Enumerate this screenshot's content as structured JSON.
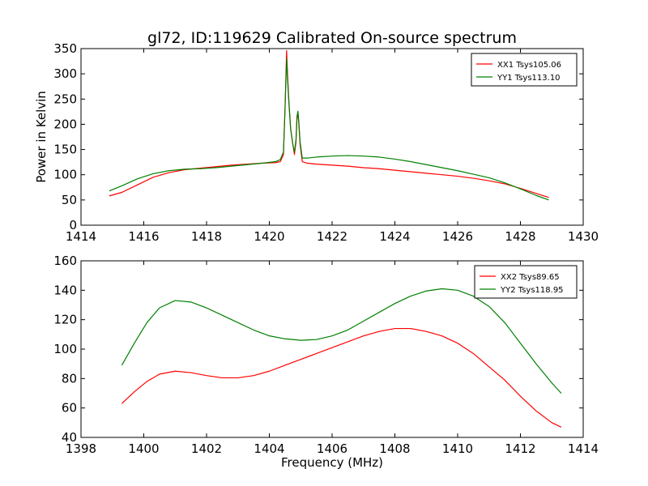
{
  "figure": {
    "title": "gl72, ID:119629 Calibrated On-source spectrum"
  },
  "chart_data": [
    {
      "type": "line",
      "title": "gl72, ID:119629 Calibrated On-source spectrum",
      "xlabel": "",
      "ylabel": "Power in Kelvin",
      "xlim": [
        1414,
        1430
      ],
      "ylim": [
        0,
        350
      ],
      "xticks": [
        1414,
        1416,
        1418,
        1420,
        1422,
        1424,
        1426,
        1428,
        1430
      ],
      "yticks": [
        0,
        50,
        100,
        150,
        200,
        250,
        300,
        350
      ],
      "grid": false,
      "legend_position": "top-right",
      "series": [
        {
          "name": "XX1 Tsys105.06",
          "color": "#ff0000",
          "x": [
            1414.9,
            1415.3,
            1415.8,
            1416.3,
            1416.8,
            1417.3,
            1417.8,
            1418.3,
            1418.8,
            1419.3,
            1419.8,
            1420.2,
            1420.35,
            1420.45,
            1420.5,
            1420.55,
            1420.58,
            1420.62,
            1420.68,
            1420.75,
            1420.8,
            1420.85,
            1420.88,
            1420.91,
            1420.94,
            1420.98,
            1421.05,
            1421.2,
            1421.5,
            1422.0,
            1422.5,
            1423.0,
            1423.5,
            1424.0,
            1424.5,
            1425.0,
            1425.5,
            1426.0,
            1426.5,
            1427.0,
            1427.5,
            1428.0,
            1428.5,
            1428.9
          ],
          "y": [
            58,
            65,
            80,
            95,
            104,
            110,
            113,
            116,
            119,
            121,
            123,
            124,
            126,
            140,
            230,
            346,
            300,
            250,
            190,
            160,
            140,
            165,
            210,
            224,
            200,
            160,
            126,
            123,
            121,
            119,
            117,
            114,
            112,
            109,
            106,
            103,
            100,
            97,
            93,
            88,
            82,
            73,
            63,
            55
          ]
        },
        {
          "name": "YY1 Tsys113.10",
          "color": "#008000",
          "x": [
            1414.9,
            1415.3,
            1415.8,
            1416.3,
            1416.8,
            1417.3,
            1417.8,
            1418.3,
            1418.8,
            1419.3,
            1419.8,
            1420.2,
            1420.35,
            1420.45,
            1420.5,
            1420.55,
            1420.58,
            1420.62,
            1420.68,
            1420.75,
            1420.8,
            1420.85,
            1420.88,
            1420.91,
            1420.94,
            1420.98,
            1421.05,
            1421.2,
            1421.5,
            1422.0,
            1422.5,
            1423.0,
            1423.5,
            1424.0,
            1424.5,
            1425.0,
            1425.5,
            1426.0,
            1426.5,
            1427.0,
            1427.5,
            1428.0,
            1428.5,
            1428.9
          ],
          "y": [
            68,
            78,
            92,
            102,
            108,
            111,
            112,
            114,
            117,
            120,
            123,
            126,
            130,
            145,
            230,
            330,
            290,
            245,
            190,
            160,
            145,
            170,
            215,
            226,
            205,
            165,
            133,
            133,
            135,
            137,
            138,
            137,
            135,
            131,
            126,
            120,
            114,
            108,
            101,
            94,
            84,
            72,
            59,
            50
          ]
        }
      ]
    },
    {
      "type": "line",
      "title": "",
      "xlabel": "Frequency (MHz)",
      "ylabel": "",
      "xlim": [
        1398,
        1414
      ],
      "ylim": [
        40,
        160
      ],
      "xticks": [
        1398,
        1400,
        1402,
        1404,
        1406,
        1408,
        1410,
        1412,
        1414
      ],
      "yticks": [
        40,
        60,
        80,
        100,
        120,
        140,
        160
      ],
      "grid": false,
      "legend_position": "top-right",
      "series": [
        {
          "name": "XX2 Tsys89.65",
          "color": "#ff0000",
          "x": [
            1399.3,
            1399.7,
            1400.1,
            1400.5,
            1401.0,
            1401.5,
            1402.0,
            1402.5,
            1403.0,
            1403.5,
            1404.0,
            1404.5,
            1405.0,
            1405.5,
            1406.0,
            1406.5,
            1407.0,
            1407.5,
            1408.0,
            1408.5,
            1409.0,
            1409.5,
            1410.0,
            1410.5,
            1411.0,
            1411.5,
            1412.0,
            1412.5,
            1413.0,
            1413.3
          ],
          "y": [
            63,
            71,
            78,
            83,
            85,
            84,
            82,
            80.5,
            80.5,
            82,
            85,
            89,
            93,
            97,
            101,
            105,
            109,
            112,
            114,
            114,
            112,
            109,
            104,
            97,
            88,
            79,
            68,
            58,
            50,
            47
          ]
        },
        {
          "name": "YY2 Tsys118.95",
          "color": "#008000",
          "x": [
            1399.3,
            1399.7,
            1400.1,
            1400.5,
            1401.0,
            1401.5,
            1402.0,
            1402.5,
            1403.0,
            1403.5,
            1404.0,
            1404.5,
            1405.0,
            1405.5,
            1406.0,
            1406.5,
            1407.0,
            1407.5,
            1408.0,
            1408.5,
            1409.0,
            1409.5,
            1410.0,
            1410.5,
            1411.0,
            1411.5,
            1412.0,
            1412.5,
            1413.0,
            1413.3
          ],
          "y": [
            89,
            104,
            118,
            128,
            133,
            132,
            128,
            123,
            118,
            113,
            109,
            107,
            106,
            106.5,
            109,
            113,
            119,
            125,
            131,
            136,
            139.5,
            141,
            140,
            136,
            129,
            118,
            104,
            90,
            77,
            70
          ]
        }
      ]
    }
  ]
}
